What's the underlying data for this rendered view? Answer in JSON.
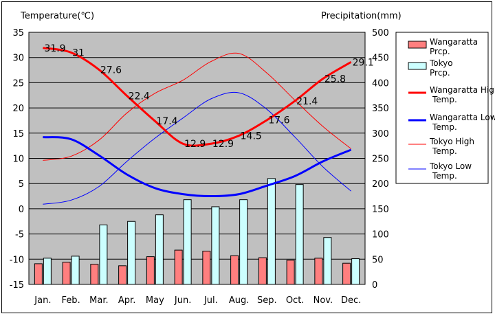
{
  "chart_data": {
    "type": "bar+line",
    "left_axis_title": "Temperature(℃)",
    "right_axis_title": "Precipitation(mm)",
    "categories": [
      "Jan.",
      "Feb.",
      "Mar.",
      "Apr.",
      "May",
      "Jun.",
      "Jul.",
      "Aug.",
      "Sep.",
      "Oct.",
      "Nov.",
      "Dec."
    ],
    "left_ylim": [
      -15,
      35
    ],
    "left_ticks": [
      -15,
      -10,
      -5,
      0,
      5,
      10,
      15,
      20,
      25,
      30,
      35
    ],
    "right_ylim": [
      0,
      500
    ],
    "right_ticks": [
      0,
      50,
      100,
      150,
      200,
      250,
      300,
      350,
      400,
      450,
      500
    ],
    "bar_series": [
      {
        "name": "Wangaratta Prcp.",
        "color": "#ff7f7f",
        "values": [
          41,
          44,
          40,
          37,
          55,
          68,
          66,
          57,
          53,
          48,
          52,
          42
        ]
      },
      {
        "name": "Tokyo Prcp.",
        "color": "#ccffff",
        "values": [
          52,
          56,
          118,
          125,
          138,
          168,
          154,
          168,
          210,
          198,
          93,
          51
        ]
      }
    ],
    "line_series": [
      {
        "name": "Wangaratta High Temp.",
        "color": "#ff0000",
        "width": "thick",
        "values": [
          31.9,
          31,
          27.6,
          22.4,
          17.4,
          12.9,
          12.9,
          14.5,
          17.6,
          21.4,
          25.8,
          29.1
        ],
        "labels": [
          "31.9",
          "31",
          "27.6",
          "22.4",
          "17.4",
          "12.9",
          "12.9",
          "14.5",
          "17.6",
          "21.4",
          "25.8",
          "29.1"
        ]
      },
      {
        "name": "Wangaratta Low Temp.",
        "color": "#0000ff",
        "width": "thick",
        "values": [
          14.2,
          13.8,
          10.6,
          6.8,
          4.1,
          2.9,
          2.5,
          2.9,
          4.6,
          6.5,
          9.4,
          11.7
        ]
      },
      {
        "name": "Tokyo High Temp.",
        "color": "#ff0000",
        "width": "thin",
        "values": [
          9.6,
          10.4,
          13.6,
          19.0,
          22.9,
          25.5,
          29.2,
          30.8,
          26.9,
          21.5,
          16.3,
          11.9
        ]
      },
      {
        "name": "Tokyo Low Temp.",
        "color": "#0000ff",
        "width": "thin",
        "values": [
          0.9,
          1.7,
          4.4,
          9.4,
          14.0,
          18.0,
          21.8,
          23.0,
          19.7,
          14.2,
          8.3,
          3.5
        ]
      }
    ],
    "legend": {
      "items": [
        {
          "label": "Wangaratta Prcp.",
          "kind": "bar",
          "color": "#ff7f7f"
        },
        {
          "label": "Tokyo Prcp.",
          "kind": "bar",
          "color": "#ccffff"
        },
        {
          "label": "Wangaratta High Temp.",
          "kind": "thick-line",
          "color": "#ff0000"
        },
        {
          "label": "Wangaratta Low Temp.",
          "kind": "thick-line",
          "color": "#0000ff"
        },
        {
          "label": "Tokyo High Temp.",
          "kind": "thin-line",
          "color": "#ff0000"
        },
        {
          "label": "Tokyo Low Temp.",
          "kind": "thin-line",
          "color": "#0000ff"
        }
      ]
    },
    "plot_background": "#c0c0c0",
    "grid": true
  }
}
